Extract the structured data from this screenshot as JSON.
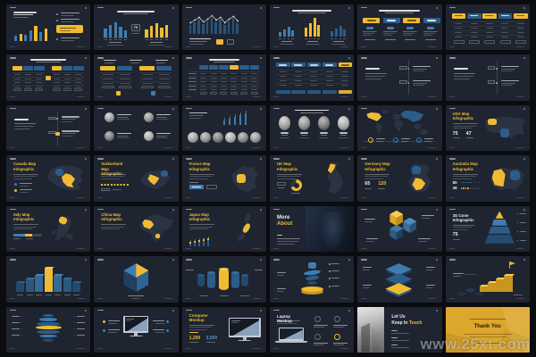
{
  "page": {
    "watermark": "www.25xt.com",
    "background": "#0b0c10"
  },
  "palette": {
    "slide_bg": "#1e2430",
    "yellow": "#f0bb33",
    "yellow_light": "#f6cc52",
    "yellow_dark": "#c8961f",
    "blue": "#3f7cb1",
    "blue_light": "#5b9aca",
    "blue_mid": "#2c5d8a",
    "blue_dark": "#24496b",
    "map_base": "#2b3342",
    "monitor_frame": "#c9ccd2",
    "screen": "#131a24",
    "thankyou_bg": "#dca72c"
  },
  "slides": [
    {
      "name": "bar-chart",
      "type": "bars_bullets",
      "bars": [
        6,
        8,
        7,
        12,
        17,
        10,
        14
      ]
    },
    {
      "name": "bar-compare",
      "type": "dual_bars",
      "badge": "75",
      "left_bars": [
        10,
        14,
        17,
        12,
        8
      ],
      "right_bars": [
        9,
        13,
        16,
        11,
        14
      ]
    },
    {
      "name": "line-chart",
      "type": "line_bars",
      "bars": [
        10,
        13,
        16,
        11,
        14,
        18,
        13,
        16,
        10,
        14,
        17,
        12
      ]
    },
    {
      "name": "grouped-bars",
      "type": "triple_groups",
      "groups": [
        [
          5,
          8,
          11,
          7
        ],
        [
          10,
          15,
          21,
          13
        ],
        [
          6,
          9,
          12,
          8
        ]
      ]
    },
    {
      "name": "option-buttons",
      "type": "four_buttons"
    },
    {
      "name": "pricing-table",
      "type": "table5"
    },
    {
      "name": "dual-tables",
      "type": "two_tables_a"
    },
    {
      "name": "dual-tables-markers",
      "type": "two_tables_b"
    },
    {
      "name": "table-6col",
      "type": "table6"
    },
    {
      "name": "table-5col",
      "type": "table5b"
    },
    {
      "name": "timeline-1",
      "type": "timeline",
      "marker": false
    },
    {
      "name": "timeline-2",
      "type": "timeline",
      "marker": false
    },
    {
      "name": "timeline-3",
      "type": "timeline",
      "marker": true
    },
    {
      "name": "team-grid",
      "type": "team_2x2"
    },
    {
      "name": "team-chart",
      "type": "team_row6",
      "candles": [
        5,
        7,
        9,
        11,
        13
      ]
    },
    {
      "name": "team-portraits",
      "type": "team_row4"
    },
    {
      "name": "world-map",
      "type": "world_map"
    },
    {
      "name": "usa-map",
      "type": "map",
      "country": "usa",
      "title": "USA Map Infographic",
      "stats": [
        {
          "value": "75",
          "color": "white"
        },
        {
          "value": "47",
          "color": "white"
        }
      ]
    },
    {
      "name": "canada-map",
      "type": "map",
      "country": "canada",
      "title": "Canada Map Infographic",
      "extra": "legend"
    },
    {
      "name": "switzerland-map",
      "type": "map",
      "country": "switzerland",
      "title": "Switzerland Map Infographic",
      "extra": "progress"
    },
    {
      "name": "france-map",
      "type": "map",
      "country": "france",
      "title": "France Map Infographic",
      "extra": "button"
    },
    {
      "name": "uk-map",
      "type": "map",
      "country": "uk",
      "title": "UK Map Infographic",
      "extra": "donut",
      "donut_percent": 68
    },
    {
      "name": "germany-map",
      "type": "map",
      "country": "germany",
      "title": "Germany Map Infographic",
      "stats": [
        {
          "value": "65",
          "color": "white"
        },
        {
          "value": "120",
          "color": "yellow"
        }
      ]
    },
    {
      "name": "australia-map",
      "type": "map",
      "country": "australia",
      "title": "Australia Map Infographic",
      "extra": "dots",
      "stats": [
        {
          "value": "85",
          "color": "white"
        },
        {
          "value": "48",
          "color": "white"
        }
      ]
    },
    {
      "name": "italy-map",
      "type": "map",
      "country": "italy",
      "title": "Italy Map Infographic",
      "extra": "segbar"
    },
    {
      "name": "china-map",
      "type": "map",
      "country": "china",
      "title": "China Map Infographic"
    },
    {
      "name": "japan-map",
      "type": "map",
      "country": "japan",
      "title": "Japan Map Infographic",
      "extra": "candles",
      "candles": [
        3,
        4,
        5,
        6,
        7
      ]
    },
    {
      "name": "more-about",
      "type": "photo_title",
      "title_line1": "More",
      "title_line2": "About"
    },
    {
      "name": "cubes-3d",
      "type": "cubes3d"
    },
    {
      "name": "cone-3d",
      "type": "cone3d",
      "title": "3D Cone Infographic",
      "stat": "75"
    },
    {
      "name": "bars-3d",
      "type": "bars3d",
      "bars": [
        10,
        14,
        18,
        26,
        18,
        14,
        10
      ]
    },
    {
      "name": "cube-cluster-3d",
      "type": "cubegrid3d"
    },
    {
      "name": "cylinders-3d",
      "type": "cyl3d"
    },
    {
      "name": "discs-3d",
      "type": "discs3d"
    },
    {
      "name": "layers-3d",
      "type": "layers3d"
    },
    {
      "name": "stairs-3d",
      "type": "stairs3d"
    },
    {
      "name": "sphere-3d",
      "type": "sphere3d"
    },
    {
      "name": "monitor-features",
      "type": "monitor_bullets"
    },
    {
      "name": "computer-mockup",
      "type": "monitor_stats",
      "title": "Computer Mockup",
      "stats": [
        {
          "value": "1,200",
          "color": "yellow"
        },
        {
          "value": "3,500",
          "color": "blue"
        }
      ]
    },
    {
      "name": "laptop-mockup",
      "type": "laptop",
      "title": "Laptop Mockup"
    },
    {
      "name": "contact",
      "type": "contact",
      "title_line1": "Let Us",
      "title_line2_pre": "Keep In",
      "title_line2_highlight": "Touch"
    },
    {
      "name": "thank-you",
      "type": "thankyou",
      "title": "Thank You"
    }
  ]
}
